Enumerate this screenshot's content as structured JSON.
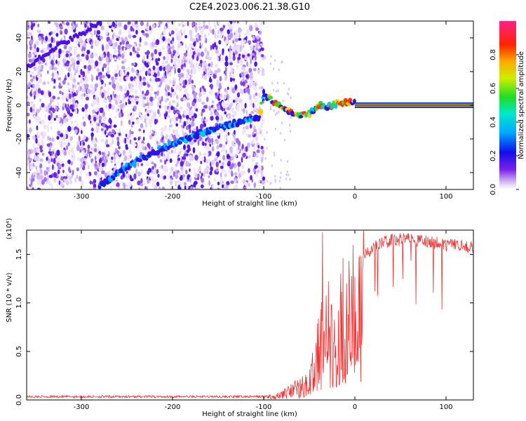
{
  "figure_title": "C2E4.2023.006.21.38.G10",
  "chart_data": [
    {
      "type": "heatmap",
      "xlabel": "Height of straight line (km)",
      "ylabel": "Frequency (Hz)",
      "xlim": [
        -360,
        130
      ],
      "ylim": [
        -50,
        50
      ],
      "x_ticks": [
        -300,
        -200,
        -100,
        0,
        100
      ],
      "x_tick_labels": [
        "-300",
        "-200",
        "-100",
        "0",
        "100"
      ],
      "y_ticks": [
        -40,
        -20,
        0,
        20,
        40
      ],
      "y_tick_labels": [
        "-40",
        "-20",
        "0",
        "20",
        "40"
      ],
      "colorbar": {
        "label": "Normalized spectral amplitude",
        "range": [
          0,
          1
        ],
        "ticks": [
          0.0,
          0.2,
          0.4,
          0.6,
          0.8
        ],
        "tick_labels": [
          "0.0",
          "0.2",
          "0.4",
          "0.6",
          "0.8"
        ],
        "colormap": "rainbow"
      },
      "noise_region_x": [
        -360,
        -100
      ],
      "ridge": [
        {
          "x": -280,
          "y": -48
        },
        {
          "x": -240,
          "y": -33
        },
        {
          "x": -200,
          "y": -23
        },
        {
          "x": -160,
          "y": -15
        },
        {
          "x": -120,
          "y": -9
        },
        {
          "x": -105,
          "y": -7
        },
        {
          "x": -100,
          "y": 7
        },
        {
          "x": -90,
          "y": 2
        },
        {
          "x": -75,
          "y": -3
        },
        {
          "x": -60,
          "y": -6
        },
        {
          "x": -50,
          "y": -5
        },
        {
          "x": -40,
          "y": 0
        },
        {
          "x": -30,
          "y": -1
        },
        {
          "x": -20,
          "y": 1
        },
        {
          "x": -10,
          "y": 2
        },
        {
          "x": 0,
          "y": 1
        },
        {
          "x": 130,
          "y": 0
        }
      ],
      "upper_ridge": [
        {
          "x": -360,
          "y": 22
        },
        {
          "x": -330,
          "y": 34
        },
        {
          "x": -300,
          "y": 42
        },
        {
          "x": -280,
          "y": 50
        }
      ]
    },
    {
      "type": "line",
      "xlabel": "Height of straight line (km)",
      "ylabel": "SNR (10 * v/v)",
      "y_exponent_label": "(x10⁴)",
      "xlim": [
        -360,
        130
      ],
      "ylim": [
        0,
        17500
      ],
      "x_ticks": [
        -300,
        -200,
        -100,
        0,
        100
      ],
      "x_tick_labels": [
        "-300",
        "-200",
        "-100",
        "0",
        "100"
      ],
      "y_ticks": [
        0,
        5000,
        10000,
        15000
      ],
      "y_tick_labels": [
        "0.0",
        "0.5",
        "1.0",
        "1.5"
      ],
      "series": [
        {
          "color": "#ee3333",
          "envelope": [
            {
              "x": -360,
              "y": 400
            },
            {
              "x": -100,
              "y": 400
            },
            {
              "x": -80,
              "y": 800
            },
            {
              "x": -70,
              "y": 1500
            },
            {
              "x": -60,
              "y": 2000
            },
            {
              "x": -50,
              "y": 3500
            },
            {
              "x": -40,
              "y": 8000
            },
            {
              "x": -30,
              "y": 11000
            },
            {
              "x": -20,
              "y": 13000
            },
            {
              "x": -10,
              "y": 14000
            },
            {
              "x": 0,
              "y": 14500
            },
            {
              "x": 10,
              "y": 15500
            },
            {
              "x": 25,
              "y": 16500
            },
            {
              "x": 40,
              "y": 17000
            },
            {
              "x": 60,
              "y": 17000
            },
            {
              "x": 80,
              "y": 16800
            },
            {
              "x": 100,
              "y": 16500
            },
            {
              "x": 130,
              "y": 16200
            }
          ]
        }
      ]
    }
  ]
}
